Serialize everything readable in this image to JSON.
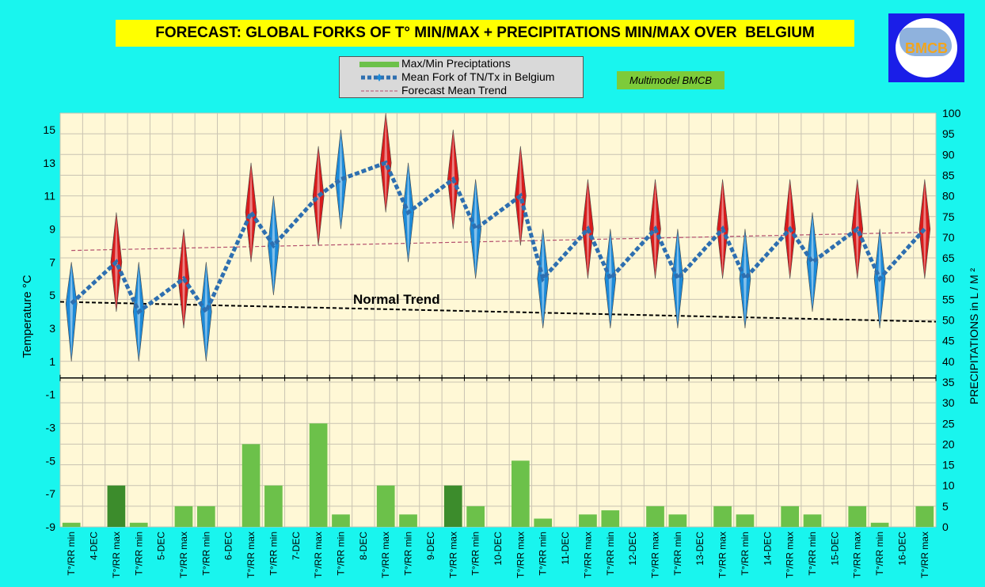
{
  "title": "FORECAST: GLOBAL FORKS OF T° MIN/MAX + PRECIPITATIONS MIN/MAX OVER  BELGIUM",
  "badge": "Multimodel BMCB",
  "logo": {
    "text": "BMCB"
  },
  "colors": {
    "background": "#19f5ee",
    "plot": "#fff8d6",
    "bars": "#6cc14a",
    "bars_dark": "#3c8c2c",
    "fork_max": "#d81c1c",
    "fork_min": "#1c8ad8",
    "mean_fork_line": "#2e6fb0",
    "forecast_trend": "#b4506e",
    "normal_trend": "#000000",
    "title_bg": "#ffff00",
    "badge_bg": "#7dcb3a"
  },
  "chart_data": {
    "type": "line",
    "legend": {
      "placement": "top-center",
      "entries": [
        "Max/Min Preciptations",
        "Mean Fork of TN/Tx in Belgium",
        "Forecast Mean Trend"
      ]
    },
    "left_axis": {
      "label": "Temperature  °C",
      "ylim": [
        -9,
        16
      ],
      "ticks": [
        15,
        13,
        11,
        9,
        7,
        5,
        3,
        1,
        -1,
        -3,
        -5,
        -7,
        -9
      ]
    },
    "right_axis": {
      "label": "PRECIPITATIONS in L / M ²",
      "ylim": [
        0,
        100
      ],
      "ticks": [
        100,
        95,
        90,
        85,
        80,
        75,
        70,
        65,
        60,
        55,
        50,
        45,
        40,
        35,
        30,
        25,
        20,
        15,
        10,
        5,
        0
      ]
    },
    "grid": true,
    "categories": [
      "T°/RR min",
      "4-DEC",
      "T°/RR max",
      "T°/RR min",
      "5-DEC",
      "T°/RR max",
      "T°/RR min",
      "6-DEC",
      "T°/RR max",
      "T°/RR min",
      "7-DEC",
      "T°/RR max",
      "T°/RR min",
      "8-DEC",
      "T°/RR max",
      "T°/RR min",
      "9-DEC",
      "T°/RR max",
      "T°/RR min",
      "10-DEC",
      "T°/RR max",
      "T°/RR min",
      "11-DEC",
      "T°/RR max",
      "T°/RR min",
      "12-DEC",
      "T°/RR max",
      "T°/RR min",
      "13-DEC",
      "T°/RR max",
      "T°/RR min",
      "14-DEC",
      "T°/RR max",
      "T°/RR min",
      "15-DEC",
      "T°/RR max",
      "T°/RR min",
      "16-DEC",
      "T°/RR max"
    ],
    "forks": [
      {
        "pos": 0,
        "kind": "min",
        "mean": 4.5,
        "low": 1.0,
        "high": 7.0
      },
      {
        "pos": 2,
        "kind": "max",
        "mean": 7.0,
        "low": 4.0,
        "high": 10.0
      },
      {
        "pos": 3,
        "kind": "min",
        "mean": 4.0,
        "low": 1.0,
        "high": 7.0
      },
      {
        "pos": 5,
        "kind": "max",
        "mean": 6.0,
        "low": 3.0,
        "high": 9.0
      },
      {
        "pos": 6,
        "kind": "min",
        "mean": 4.0,
        "low": 1.0,
        "high": 7.0
      },
      {
        "pos": 8,
        "kind": "max",
        "mean": 10.0,
        "low": 7.0,
        "high": 13.0
      },
      {
        "pos": 9,
        "kind": "min",
        "mean": 8.0,
        "low": 5.0,
        "high": 11.0
      },
      {
        "pos": 11,
        "kind": "max",
        "mean": 11.0,
        "low": 8.0,
        "high": 14.0
      },
      {
        "pos": 12,
        "kind": "min",
        "mean": 12.0,
        "low": 9.0,
        "high": 15.0
      },
      {
        "pos": 14,
        "kind": "max",
        "mean": 13.0,
        "low": 10.0,
        "high": 16.0
      },
      {
        "pos": 15,
        "kind": "min",
        "mean": 10.0,
        "low": 7.0,
        "high": 13.0
      },
      {
        "pos": 17,
        "kind": "max",
        "mean": 12.0,
        "low": 9.0,
        "high": 15.0
      },
      {
        "pos": 18,
        "kind": "min",
        "mean": 9.0,
        "low": 6.0,
        "high": 12.0
      },
      {
        "pos": 20,
        "kind": "max",
        "mean": 11.0,
        "low": 8.0,
        "high": 14.0
      },
      {
        "pos": 21,
        "kind": "min",
        "mean": 6.0,
        "low": 3.0,
        "high": 9.0
      },
      {
        "pos": 23,
        "kind": "max",
        "mean": 9.0,
        "low": 6.0,
        "high": 12.0
      },
      {
        "pos": 24,
        "kind": "min",
        "mean": 6.0,
        "low": 3.0,
        "high": 9.0
      },
      {
        "pos": 26,
        "kind": "max",
        "mean": 9.0,
        "low": 6.0,
        "high": 12.0
      },
      {
        "pos": 27,
        "kind": "min",
        "mean": 6.0,
        "low": 3.0,
        "high": 9.0
      },
      {
        "pos": 29,
        "kind": "max",
        "mean": 9.0,
        "low": 6.0,
        "high": 12.0
      },
      {
        "pos": 30,
        "kind": "min",
        "mean": 6.0,
        "low": 3.0,
        "high": 9.0
      },
      {
        "pos": 32,
        "kind": "max",
        "mean": 9.0,
        "low": 6.0,
        "high": 12.0
      },
      {
        "pos": 33,
        "kind": "min",
        "mean": 7.0,
        "low": 4.0,
        "high": 10.0
      },
      {
        "pos": 35,
        "kind": "max",
        "mean": 9.0,
        "low": 6.0,
        "high": 12.0
      },
      {
        "pos": 36,
        "kind": "min",
        "mean": 6.0,
        "low": 3.0,
        "high": 9.0
      },
      {
        "pos": 38,
        "kind": "max",
        "mean": 9.0,
        "low": 6.0,
        "high": 12.0
      }
    ],
    "precipitation": [
      {
        "pos": 0,
        "value": 1,
        "dark": false
      },
      {
        "pos": 2,
        "value": 10,
        "dark": true
      },
      {
        "pos": 3,
        "value": 1,
        "dark": false
      },
      {
        "pos": 5,
        "value": 5,
        "dark": false
      },
      {
        "pos": 6,
        "value": 5,
        "dark": false
      },
      {
        "pos": 8,
        "value": 20,
        "dark": false
      },
      {
        "pos": 9,
        "value": 10,
        "dark": false
      },
      {
        "pos": 11,
        "value": 25,
        "dark": false
      },
      {
        "pos": 12,
        "value": 3,
        "dark": false
      },
      {
        "pos": 14,
        "value": 10,
        "dark": false
      },
      {
        "pos": 15,
        "value": 3,
        "dark": false
      },
      {
        "pos": 17,
        "value": 10,
        "dark": true
      },
      {
        "pos": 18,
        "value": 5,
        "dark": false
      },
      {
        "pos": 20,
        "value": 16,
        "dark": false
      },
      {
        "pos": 21,
        "value": 2,
        "dark": false
      },
      {
        "pos": 23,
        "value": 3,
        "dark": false
      },
      {
        "pos": 24,
        "value": 4,
        "dark": false
      },
      {
        "pos": 26,
        "value": 5,
        "dark": false
      },
      {
        "pos": 27,
        "value": 3,
        "dark": false
      },
      {
        "pos": 29,
        "value": 5,
        "dark": false
      },
      {
        "pos": 30,
        "value": 3,
        "dark": false
      },
      {
        "pos": 32,
        "value": 5,
        "dark": false
      },
      {
        "pos": 33,
        "value": 3,
        "dark": false
      },
      {
        "pos": 35,
        "value": 5,
        "dark": false
      },
      {
        "pos": 36,
        "value": 1,
        "dark": false
      },
      {
        "pos": 38,
        "value": 5,
        "dark": false
      }
    ],
    "forecast_mean_trend": {
      "start": 7.7,
      "end": 8.8
    },
    "normal_trend": {
      "start": 4.6,
      "end": 3.4,
      "label": "Normal Trend"
    }
  }
}
